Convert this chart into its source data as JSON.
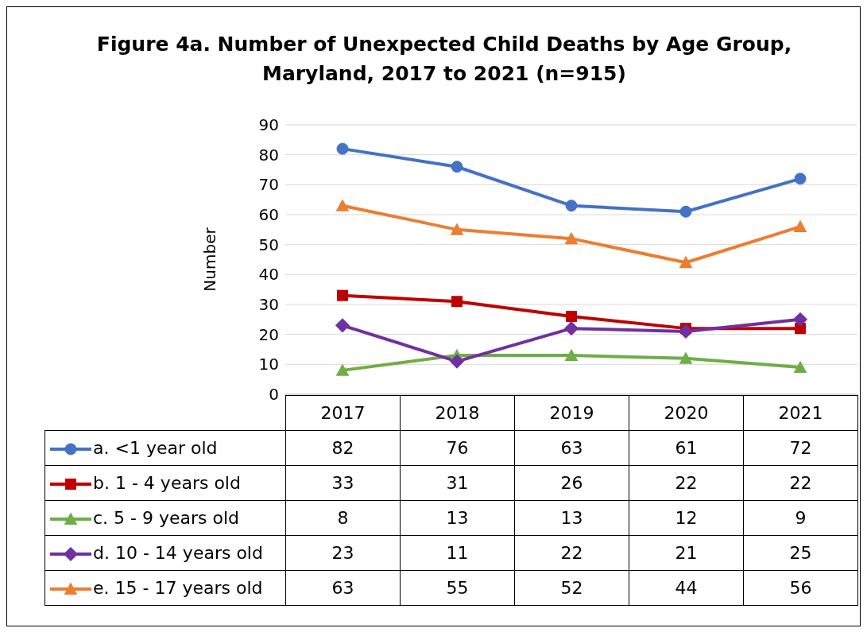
{
  "chart_data": {
    "type": "line",
    "title": "Figure 4a. Number of Unexpected Child Deaths by Age Group, Maryland, 2017 to 2021 (n=915)",
    "ylabel": "Number",
    "categories": [
      "2017",
      "2018",
      "2019",
      "2020",
      "2021"
    ],
    "series": [
      {
        "name": "a. <1 year old",
        "color": "#4472c4",
        "marker": "circle",
        "values": [
          82,
          76,
          63,
          61,
          72
        ]
      },
      {
        "name": "b. 1 - 4 years old",
        "color": "#c00000",
        "marker": "square",
        "values": [
          33,
          31,
          26,
          22,
          22
        ]
      },
      {
        "name": "c. 5 - 9 years old",
        "color": "#70ad47",
        "marker": "triangle",
        "values": [
          8,
          13,
          13,
          12,
          9
        ]
      },
      {
        "name": "d. 10 - 14 years old",
        "color": "#7030a0",
        "marker": "diamond",
        "values": [
          23,
          11,
          22,
          21,
          25
        ]
      },
      {
        "name": "e. 15 - 17 years old",
        "color": "#ed7d31",
        "marker": "triangle",
        "values": [
          63,
          55,
          52,
          44,
          56
        ]
      }
    ],
    "ylim": [
      0,
      90
    ],
    "yticks": [
      0,
      10,
      20,
      30,
      40,
      50,
      60,
      70,
      80,
      90
    ],
    "grid": "y",
    "legend": "bottom",
    "data_labels": true
  }
}
